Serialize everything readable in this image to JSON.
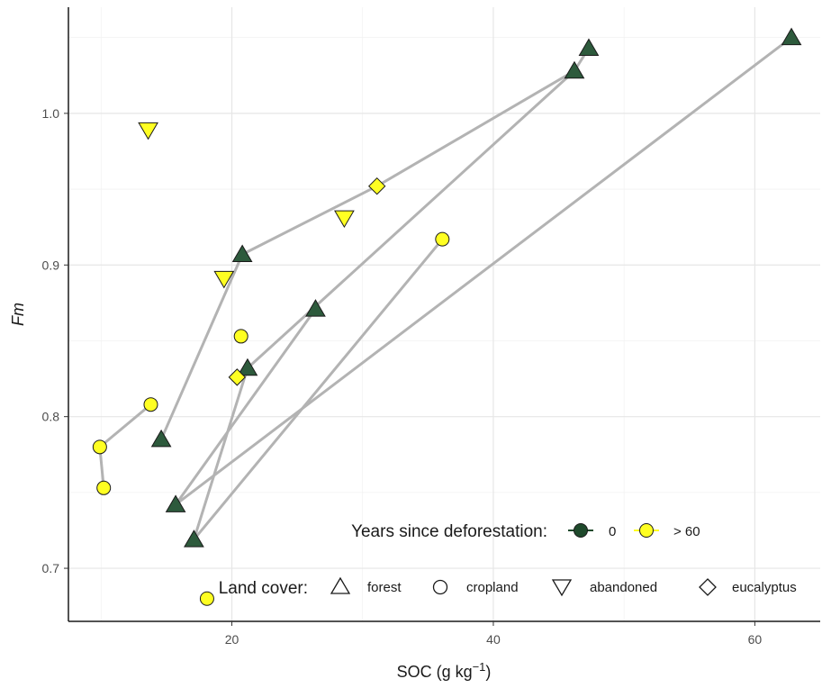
{
  "chart_data": {
    "type": "scatter",
    "xlabel": "SOC (g kg",
    "xlabel_sup": "−1",
    "xlabel_tail": ")",
    "ylabel": "Fm",
    "xlim": [
      7.5,
      65
    ],
    "ylim": [
      0.665,
      1.07
    ],
    "x_ticks": [
      20,
      40,
      60
    ],
    "y_ticks": [
      0.7,
      0.8,
      0.9,
      1.0
    ],
    "x_tick_labels": [
      "20",
      "40",
      "60"
    ],
    "y_tick_labels": [
      "0.7",
      "0.8",
      "0.9",
      "1.0"
    ],
    "grid": true,
    "colors": {
      "0": "#2d5a3c",
      "> 60": "#ffff22",
      "line": "#b3b3b3",
      "stroke": "#1a1a1a"
    },
    "points": [
      {
        "x": 47.3,
        "y": 1.043,
        "cover": "forest",
        "years": "0"
      },
      {
        "x": 46.2,
        "y": 1.028,
        "cover": "forest",
        "years": "0"
      },
      {
        "x": 62.8,
        "y": 1.05,
        "cover": "forest",
        "years": "0"
      },
      {
        "x": 20.8,
        "y": 0.907,
        "cover": "forest",
        "years": "0"
      },
      {
        "x": 26.4,
        "y": 0.871,
        "cover": "forest",
        "years": "0"
      },
      {
        "x": 21.2,
        "y": 0.832,
        "cover": "forest",
        "years": "0"
      },
      {
        "x": 14.6,
        "y": 0.785,
        "cover": "forest",
        "years": "0"
      },
      {
        "x": 15.7,
        "y": 0.742,
        "cover": "forest",
        "years": "0"
      },
      {
        "x": 17.1,
        "y": 0.719,
        "cover": "forest",
        "years": "0"
      },
      {
        "x": 13.6,
        "y": 0.989,
        "cover": "abandoned",
        "years": "> 60"
      },
      {
        "x": 28.6,
        "y": 0.931,
        "cover": "abandoned",
        "years": "> 60"
      },
      {
        "x": 19.4,
        "y": 0.891,
        "cover": "abandoned",
        "years": "> 60"
      },
      {
        "x": 31.1,
        "y": 0.952,
        "cover": "eucalyptus",
        "years": "> 60"
      },
      {
        "x": 20.4,
        "y": 0.826,
        "cover": "eucalyptus",
        "years": "> 60"
      },
      {
        "x": 36.1,
        "y": 0.917,
        "cover": "cropland",
        "years": "> 60"
      },
      {
        "x": 20.7,
        "y": 0.853,
        "cover": "cropland",
        "years": "> 60"
      },
      {
        "x": 13.8,
        "y": 0.808,
        "cover": "cropland",
        "years": "> 60"
      },
      {
        "x": 9.9,
        "y": 0.78,
        "cover": "cropland",
        "years": "> 60"
      },
      {
        "x": 10.2,
        "y": 0.753,
        "cover": "cropland",
        "years": "> 60"
      },
      {
        "x": 18.1,
        "y": 0.68,
        "cover": "cropland",
        "years": "> 60"
      }
    ],
    "segments": [
      [
        [
          14.6,
          0.785
        ],
        [
          20.8,
          0.907
        ]
      ],
      [
        [
          20.8,
          0.907
        ],
        [
          31.1,
          0.952
        ]
      ],
      [
        [
          31.1,
          0.952
        ],
        [
          46.2,
          1.028
        ]
      ],
      [
        [
          46.2,
          1.028
        ],
        [
          47.3,
          1.043
        ]
      ],
      [
        [
          46.2,
          1.028
        ],
        [
          21.2,
          0.832
        ]
      ],
      [
        [
          15.7,
          0.742
        ],
        [
          26.4,
          0.871
        ]
      ],
      [
        [
          15.7,
          0.742
        ],
        [
          62.8,
          1.05
        ]
      ],
      [
        [
          17.1,
          0.719
        ],
        [
          36.1,
          0.917
        ]
      ],
      [
        [
          17.1,
          0.719
        ],
        [
          21.2,
          0.832
        ]
      ],
      [
        [
          9.9,
          0.78
        ],
        [
          13.8,
          0.808
        ]
      ],
      [
        [
          9.9,
          0.78
        ],
        [
          10.2,
          0.753
        ]
      ]
    ],
    "legend": {
      "years_title": "Years since deforestation:",
      "years_items": [
        {
          "label": "0",
          "color": "#1f4a2c"
        },
        {
          "label": "> 60",
          "color": "#ffff22"
        }
      ],
      "cover_title": "Land cover:",
      "cover_items": [
        {
          "label": "forest",
          "shape": "triangle-up"
        },
        {
          "label": "cropland",
          "shape": "circle"
        },
        {
          "label": "abandoned",
          "shape": "triangle-down"
        },
        {
          "label": "eucalyptus",
          "shape": "diamond"
        }
      ],
      "placement": "bottom-right"
    }
  }
}
